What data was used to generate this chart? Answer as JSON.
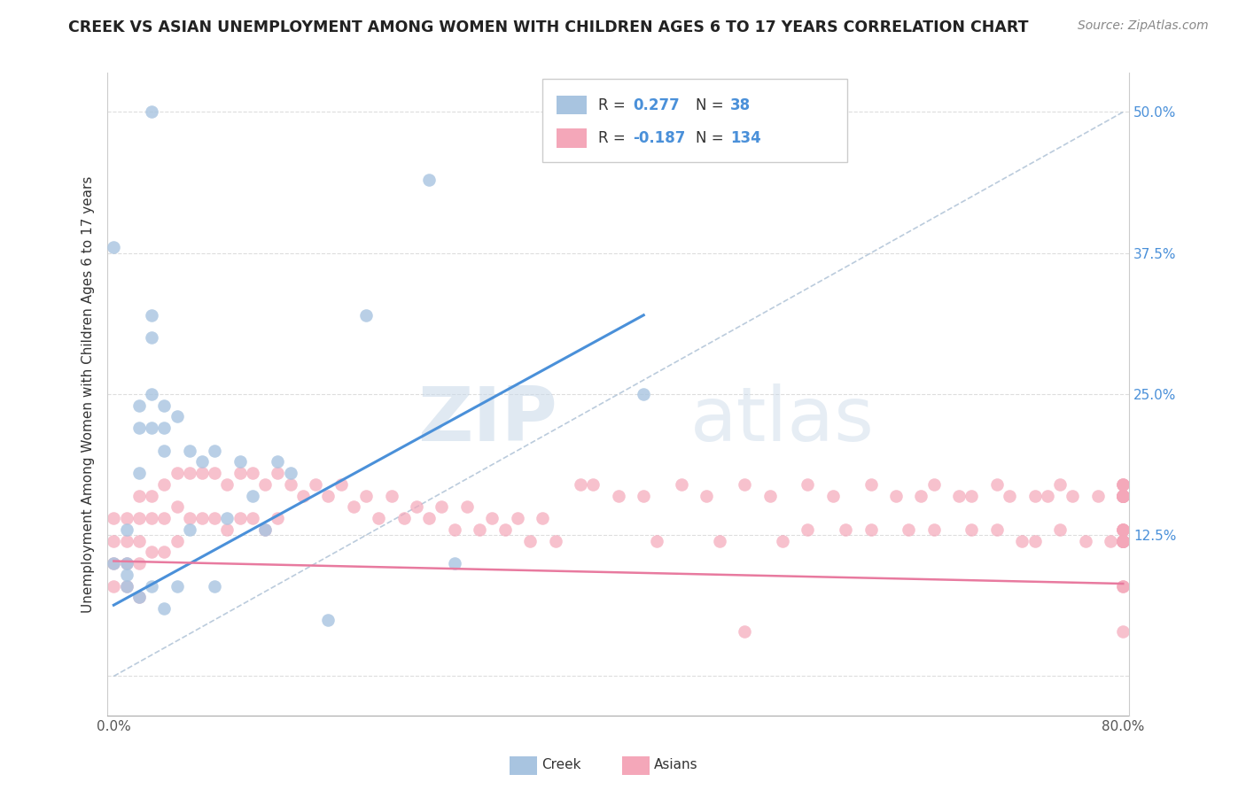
{
  "title": "CREEK VS ASIAN UNEMPLOYMENT AMONG WOMEN WITH CHILDREN AGES 6 TO 17 YEARS CORRELATION CHART",
  "source": "Source: ZipAtlas.com",
  "ylabel": "Unemployment Among Women with Children Ages 6 to 17 years",
  "xlim": [
    -0.005,
    0.805
  ],
  "ylim": [
    -0.035,
    0.535
  ],
  "xticks": [
    0.0,
    0.1,
    0.2,
    0.3,
    0.4,
    0.5,
    0.6,
    0.7,
    0.8
  ],
  "xticklabels": [
    "0.0%",
    "",
    "",
    "",
    "",
    "",
    "",
    "",
    "80.0%"
  ],
  "yticks_right": [
    0.0,
    0.125,
    0.25,
    0.375,
    0.5
  ],
  "ytick_right_labels": [
    "",
    "12.5%",
    "25.0%",
    "37.5%",
    "50.0%"
  ],
  "creek_color": "#a8c4e0",
  "asian_color": "#f4a7b9",
  "creek_line_color": "#4a90d9",
  "asian_line_color": "#e87a9f",
  "diagonal_color": "#aabfd4",
  "grid_color": "#dddddd",
  "legend_R_creek": "0.277",
  "legend_N_creek": "38",
  "legend_R_asian": "-0.187",
  "legend_N_asian": "134",
  "creek_scatter_x": [
    0.0,
    0.0,
    0.01,
    0.01,
    0.01,
    0.02,
    0.02,
    0.02,
    0.03,
    0.03,
    0.03,
    0.03,
    0.03,
    0.04,
    0.04,
    0.04,
    0.05,
    0.05,
    0.06,
    0.06,
    0.07,
    0.08,
    0.08,
    0.09,
    0.1,
    0.11,
    0.12,
    0.13,
    0.14,
    0.17,
    0.2,
    0.25,
    0.27,
    0.42,
    0.01,
    0.02,
    0.03,
    0.04
  ],
  "creek_scatter_y": [
    0.38,
    0.1,
    0.13,
    0.1,
    0.08,
    0.24,
    0.22,
    0.07,
    0.5,
    0.32,
    0.3,
    0.25,
    0.22,
    0.24,
    0.2,
    0.06,
    0.23,
    0.08,
    0.2,
    0.13,
    0.19,
    0.2,
    0.08,
    0.14,
    0.19,
    0.16,
    0.13,
    0.19,
    0.18,
    0.05,
    0.32,
    0.44,
    0.1,
    0.25,
    0.09,
    0.18,
    0.08,
    0.22
  ],
  "asian_scatter_x": [
    0.0,
    0.0,
    0.0,
    0.0,
    0.01,
    0.01,
    0.01,
    0.01,
    0.02,
    0.02,
    0.02,
    0.02,
    0.02,
    0.03,
    0.03,
    0.03,
    0.04,
    0.04,
    0.04,
    0.05,
    0.05,
    0.05,
    0.06,
    0.06,
    0.07,
    0.07,
    0.08,
    0.08,
    0.09,
    0.09,
    0.1,
    0.1,
    0.11,
    0.11,
    0.12,
    0.12,
    0.13,
    0.13,
    0.14,
    0.15,
    0.16,
    0.17,
    0.18,
    0.19,
    0.2,
    0.21,
    0.22,
    0.23,
    0.24,
    0.25,
    0.26,
    0.27,
    0.28,
    0.29,
    0.3,
    0.31,
    0.32,
    0.33,
    0.34,
    0.35,
    0.37,
    0.38,
    0.4,
    0.42,
    0.43,
    0.45,
    0.47,
    0.48,
    0.5,
    0.5,
    0.52,
    0.53,
    0.55,
    0.55,
    0.57,
    0.58,
    0.6,
    0.6,
    0.62,
    0.63,
    0.64,
    0.65,
    0.65,
    0.67,
    0.68,
    0.68,
    0.7,
    0.7,
    0.71,
    0.72,
    0.73,
    0.73,
    0.74,
    0.75,
    0.75,
    0.76,
    0.77,
    0.78,
    0.79,
    0.8,
    0.8,
    0.8,
    0.8,
    0.8,
    0.8,
    0.8,
    0.8,
    0.8,
    0.8,
    0.8,
    0.8,
    0.8,
    0.8,
    0.8,
    0.8,
    0.8,
    0.8,
    0.8,
    0.8,
    0.8,
    0.8,
    0.8,
    0.8,
    0.8,
    0.8,
    0.8,
    0.8,
    0.8,
    0.8,
    0.8,
    0.8,
    0.8,
    0.8,
    0.8
  ],
  "asian_scatter_y": [
    0.14,
    0.12,
    0.1,
    0.08,
    0.14,
    0.12,
    0.1,
    0.08,
    0.16,
    0.14,
    0.12,
    0.1,
    0.07,
    0.16,
    0.14,
    0.11,
    0.17,
    0.14,
    0.11,
    0.18,
    0.15,
    0.12,
    0.18,
    0.14,
    0.18,
    0.14,
    0.18,
    0.14,
    0.17,
    0.13,
    0.18,
    0.14,
    0.18,
    0.14,
    0.17,
    0.13,
    0.18,
    0.14,
    0.17,
    0.16,
    0.17,
    0.16,
    0.17,
    0.15,
    0.16,
    0.14,
    0.16,
    0.14,
    0.15,
    0.14,
    0.15,
    0.13,
    0.15,
    0.13,
    0.14,
    0.13,
    0.14,
    0.12,
    0.14,
    0.12,
    0.17,
    0.17,
    0.16,
    0.16,
    0.12,
    0.17,
    0.16,
    0.12,
    0.17,
    0.04,
    0.16,
    0.12,
    0.17,
    0.13,
    0.16,
    0.13,
    0.17,
    0.13,
    0.16,
    0.13,
    0.16,
    0.17,
    0.13,
    0.16,
    0.16,
    0.13,
    0.17,
    0.13,
    0.16,
    0.12,
    0.16,
    0.12,
    0.16,
    0.17,
    0.13,
    0.16,
    0.12,
    0.16,
    0.12,
    0.16,
    0.12,
    0.16,
    0.12,
    0.16,
    0.12,
    0.16,
    0.13,
    0.16,
    0.12,
    0.17,
    0.13,
    0.16,
    0.12,
    0.16,
    0.12,
    0.16,
    0.12,
    0.17,
    0.13,
    0.16,
    0.12,
    0.04,
    0.16,
    0.12,
    0.16,
    0.12,
    0.16,
    0.12,
    0.16,
    0.12,
    0.17,
    0.13,
    0.08,
    0.08
  ]
}
